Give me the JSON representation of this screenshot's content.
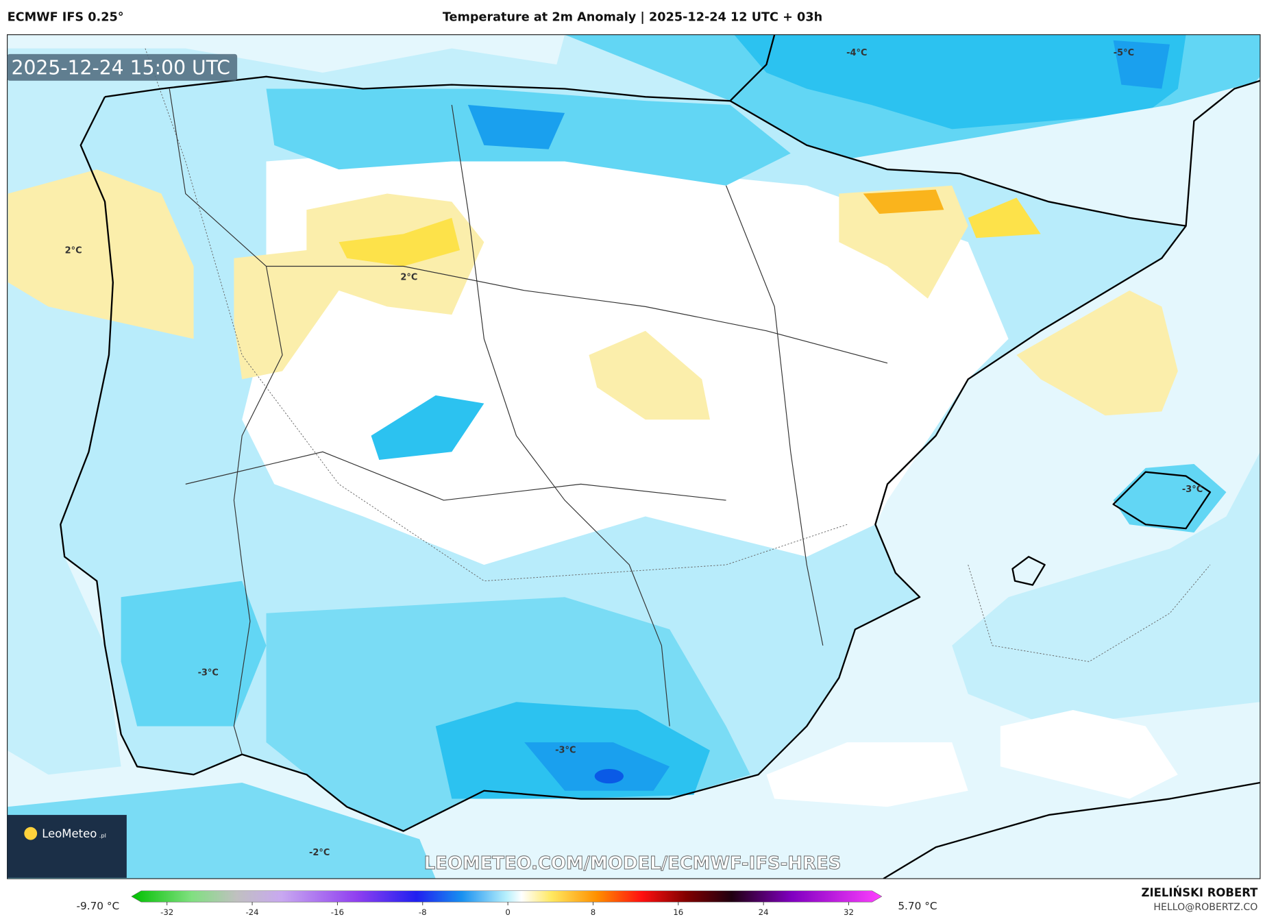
{
  "header": {
    "model": "ECMWF IFS 0.25°",
    "title": "Temperature at 2m Anomaly | 2025-12-24 12 UTC + 03h"
  },
  "map": {
    "valid_time": "2025-12-24 15:00 UTC",
    "contour_labels": [
      "-4°C",
      "-5°C",
      "2°C",
      "2°C",
      "-3°C",
      "-3°C",
      "-3°C",
      "-2°C"
    ],
    "logo": "LeoMeteo",
    "logo_suffix": ".pl",
    "watermark": "LEOMETEO.COM/MODEL/ECMWF-IFS-HRES"
  },
  "legend": {
    "min_label": "-9.70 °C",
    "max_label": "5.70 °C",
    "ticks": [
      -32,
      -24,
      -16,
      -8,
      0,
      8,
      16,
      24,
      32
    ]
  },
  "credit": {
    "author": "ZIELIŃSKI ROBERT",
    "email": "HELLO@ROBERTZ.CO"
  }
}
